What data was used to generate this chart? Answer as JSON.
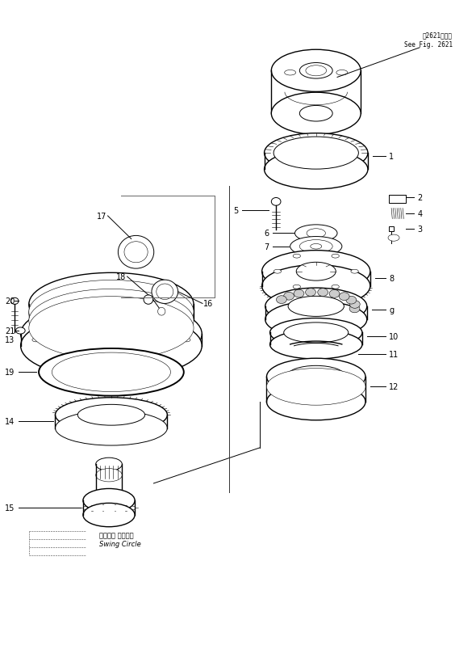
{
  "background_color": "#ffffff",
  "line_color": "#000000",
  "fig_width": 5.9,
  "fig_height": 8.2,
  "dpi": 100,
  "annotation_line1": "第2621図参照",
  "annotation_line2": "See Fig. 2621",
  "swing_circle_jp": "スイング サークル",
  "swing_circle_en": "Swing Circle",
  "rcx": 0.665,
  "lcx": 0.23
}
